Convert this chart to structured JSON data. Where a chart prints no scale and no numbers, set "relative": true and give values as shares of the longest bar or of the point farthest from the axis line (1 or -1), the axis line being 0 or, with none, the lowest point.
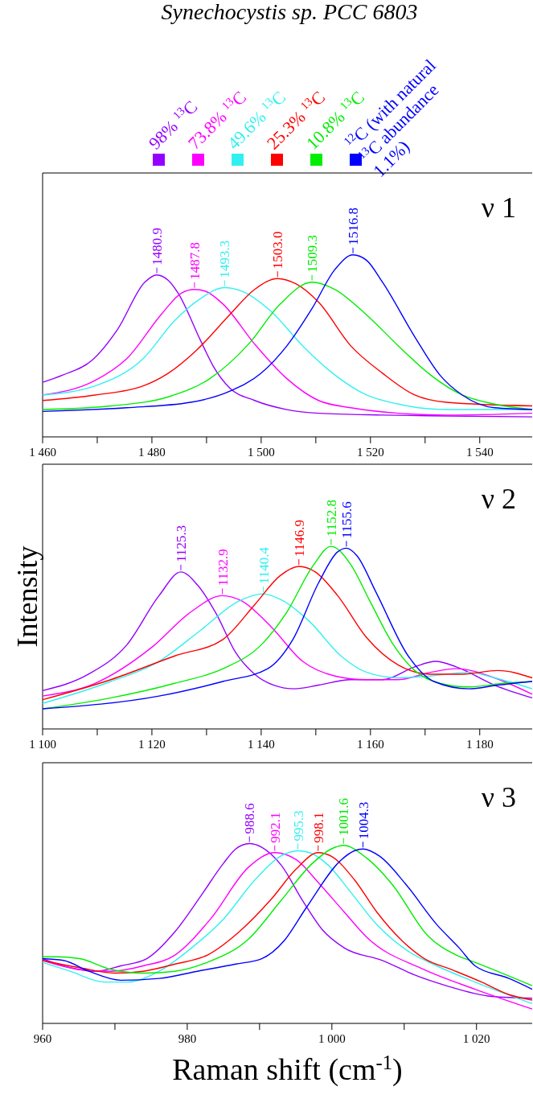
{
  "chart_data": [
    {
      "type": "line",
      "title": "Synechocystis sp. PCC 6803",
      "relative": true,
      "legend": "top",
      "xlim": [
        1460,
        1549.6
      ],
      "xticks": [
        {
          "value": 1460,
          "label": "1 460"
        },
        {
          "value": 1470,
          "label": null
        },
        {
          "value": 1480,
          "label": "1 480"
        },
        {
          "value": 1490,
          "label": null
        },
        {
          "value": 1500,
          "label": "1 500"
        },
        {
          "value": 1510,
          "label": null
        },
        {
          "value": 1520,
          "label": "1 520"
        },
        {
          "value": 1530,
          "label": null
        },
        {
          "value": 1540,
          "label": "1 540"
        }
      ],
      "series": [
        {
          "name": "98% $^{13}$C",
          "color": "#9400ff",
          "x": [
            1460,
            1463.7,
            1469.0,
            1473.7,
            1478.7,
            1480.9,
            1483.0,
            1484.8,
            1488.9,
            1491.2,
            1494.2,
            1498.8,
            1504.7,
            1510.5,
            1522.2,
            1533.9,
            1549.6
          ],
          "values": [
            0.3,
            0.34,
            0.42,
            0.59,
            0.85,
            0.89,
            0.86,
            0.79,
            0.53,
            0.39,
            0.27,
            0.2,
            0.15,
            0.13,
            0.12,
            0.115,
            0.11
          ]
        },
        {
          "name": "73.8% $^{13}$C",
          "color": "#ff00ff",
          "x": [
            1460,
            1469.6,
            1475.4,
            1481.9,
            1485.4,
            1487.8,
            1489.8,
            1493.0,
            1498.8,
            1504.7,
            1510.5,
            1516.4,
            1525.1,
            1533.9,
            1549.6
          ],
          "values": [
            0.23,
            0.31,
            0.43,
            0.68,
            0.79,
            0.81,
            0.8,
            0.73,
            0.51,
            0.32,
            0.2,
            0.16,
            0.13,
            0.12,
            0.13
          ]
        },
        {
          "name": "49.6% $^{13}$C",
          "color": "#33f0f0",
          "x": [
            1460,
            1469.6,
            1478.4,
            1484.2,
            1488.9,
            1493.3,
            1496.5,
            1501.8,
            1507.6,
            1513.5,
            1519.3,
            1525.1,
            1533.9,
            1549.6
          ],
          "values": [
            0.23,
            0.28,
            0.43,
            0.64,
            0.76,
            0.82,
            0.8,
            0.69,
            0.5,
            0.34,
            0.23,
            0.18,
            0.15,
            0.15
          ]
        },
        {
          "name": "25.3% $^{13}$C",
          "color": "#ff0000",
          "x": [
            1460,
            1469.6,
            1478.4,
            1483.0,
            1488.3,
            1494.2,
            1498.8,
            1503.0,
            1506.4,
            1510.5,
            1516.4,
            1522.2,
            1528.1,
            1533.9,
            1549.6
          ],
          "values": [
            0.2,
            0.23,
            0.28,
            0.35,
            0.48,
            0.67,
            0.81,
            0.87,
            0.84,
            0.74,
            0.5,
            0.35,
            0.23,
            0.19,
            0.17
          ]
        },
        {
          "name": "10.8% $^{13}$C",
          "color": "#00ee00",
          "x": [
            1460,
            1472.5,
            1483.0,
            1490.6,
            1497.7,
            1503.5,
            1509.3,
            1513.5,
            1519.3,
            1525.1,
            1531.0,
            1536.8,
            1542.7,
            1549.6
          ],
          "values": [
            0.15,
            0.17,
            0.22,
            0.32,
            0.51,
            0.73,
            0.85,
            0.81,
            0.67,
            0.5,
            0.34,
            0.23,
            0.18,
            0.15
          ]
        },
        {
          "name": "$^{12}$C (with natural $^{13}$C abundance 1.1%)",
          "color": "#0000ff",
          "x": [
            1460,
            1475.4,
            1487.1,
            1494.2,
            1500.0,
            1504.7,
            1509.4,
            1513.5,
            1516.8,
            1519.3,
            1522.2,
            1528.1,
            1532.7,
            1536.8,
            1542.7,
            1549.6
          ],
          "values": [
            0.14,
            0.16,
            0.19,
            0.25,
            0.35,
            0.5,
            0.71,
            0.92,
            1,
            0.97,
            0.85,
            0.55,
            0.34,
            0.23,
            0.16,
            0.15
          ]
        }
      ],
      "annotations": [
        {
          "text": "1480.9",
          "x": 1480.9,
          "y": 0.89
        },
        {
          "text": "1487.8",
          "x": 1487.8,
          "y": 0.81
        },
        {
          "text": "1493.3",
          "x": 1493.3,
          "y": 0.82
        },
        {
          "text": "1503.0",
          "x": 1503.0,
          "y": 0.87
        },
        {
          "text": "1509.3",
          "x": 1509.3,
          "y": 0.85
        },
        {
          "text": "1516.8",
          "x": 1516.8,
          "y": 1
        },
        "ν 1"
      ]
    },
    {
      "type": "line",
      "ylabel": "Intensity",
      "relative": true,
      "xlim": [
        1100,
        1189.6
      ],
      "xticks": [
        {
          "value": 1100,
          "label": "1 100"
        },
        {
          "value": 1110,
          "label": null
        },
        {
          "value": 1120,
          "label": "1 120"
        },
        {
          "value": 1130,
          "label": null
        },
        {
          "value": 1140,
          "label": "1 140"
        },
        {
          "value": 1150,
          "label": null
        },
        {
          "value": 1160,
          "label": "1 160"
        },
        {
          "value": 1170,
          "label": null
        },
        {
          "value": 1180,
          "label": "1 180"
        }
      ],
      "series": [
        {
          "color": "#9400ff",
          "x": [
            1100,
            1108.4,
            1115.4,
            1121.3,
            1125.3,
            1128.3,
            1131.8,
            1135.3,
            1138.8,
            1142.3,
            1146.1,
            1150.5,
            1156.4,
            1162.2,
            1168.1,
            1171.9,
            1175.7,
            1182.7,
            1189.6
          ],
          "values": [
            0.21,
            0.3,
            0.46,
            0.73,
            0.86,
            0.79,
            0.63,
            0.42,
            0.3,
            0.24,
            0.22,
            0.24,
            0.27,
            0.27,
            0.34,
            0.37,
            0.34,
            0.24,
            0.17
          ]
        },
        {
          "color": "#ff00ff",
          "x": [
            1100,
            1109.6,
            1120.1,
            1127.1,
            1132.9,
            1136.5,
            1141.8,
            1147.6,
            1153.5,
            1159.3,
            1165.1,
            1171.0,
            1175.7,
            1182.7,
            1189.6
          ],
          "values": [
            0.18,
            0.25,
            0.45,
            0.64,
            0.73,
            0.7,
            0.56,
            0.37,
            0.29,
            0.27,
            0.27,
            0.31,
            0.33,
            0.28,
            0.19
          ]
        },
        {
          "color": "#33f0f0",
          "x": [
            1100,
            1112.5,
            1121.3,
            1128.9,
            1135.9,
            1140.4,
            1143.5,
            1148.8,
            1154.6,
            1159.3,
            1165.1,
            1171.0,
            1178.0,
            1182.7,
            1189.6
          ],
          "values": [
            0.14,
            0.26,
            0.37,
            0.54,
            0.7,
            0.74,
            0.71,
            0.59,
            0.4,
            0.31,
            0.28,
            0.29,
            0.31,
            0.28,
            0.22
          ]
        },
        {
          "color": "#ff0000",
          "x": [
            1100,
            1112.5,
            1124.2,
            1133.0,
            1138.8,
            1143.5,
            1146.9,
            1149.9,
            1154.0,
            1159.3,
            1165.1,
            1171.0,
            1176.8,
            1183.3,
            1189.6
          ],
          "values": [
            0.16,
            0.27,
            0.4,
            0.49,
            0.68,
            0.84,
            0.89,
            0.86,
            0.73,
            0.5,
            0.35,
            0.3,
            0.3,
            0.32,
            0.28
          ]
        },
        {
          "color": "#00ee00",
          "x": [
            1100,
            1112.5,
            1124.2,
            1133.0,
            1140.0,
            1144.7,
            1149.4,
            1152.8,
            1156.4,
            1159.9,
            1164.0,
            1168.1,
            1172.7,
            1178.0,
            1184.4,
            1189.6
          ],
          "values": [
            0.11,
            0.17,
            0.25,
            0.33,
            0.46,
            0.64,
            0.89,
            1,
            0.9,
            0.7,
            0.47,
            0.32,
            0.25,
            0.23,
            0.25,
            0.26
          ]
        },
        {
          "color": "#0000ff",
          "x": [
            1100,
            1121.3,
            1133.0,
            1141.2,
            1145.8,
            1150.5,
            1154.0,
            1155.6,
            1157.5,
            1161.0,
            1166.9,
            1171.6,
            1178.0,
            1183.3,
            1189.6
          ],
          "values": [
            0.11,
            0.18,
            0.26,
            0.33,
            0.49,
            0.8,
            0.97,
            0.99,
            0.95,
            0.75,
            0.4,
            0.26,
            0.22,
            0.24,
            0.26
          ]
        }
      ],
      "annotations": [
        {
          "text": "1125.3",
          "x": 1125.3,
          "y": 0.86
        },
        {
          "text": "1132.9",
          "x": 1132.9,
          "y": 0.73
        },
        {
          "text": "1140.4",
          "x": 1140.4,
          "y": 0.74
        },
        {
          "text": "1146.9",
          "x": 1146.9,
          "y": 0.89
        },
        {
          "text": "1152.8",
          "x": 1152.8,
          "y": 1
        },
        {
          "text": "1155.6",
          "x": 1155.6,
          "y": 0.99
        },
        "ν 2"
      ]
    },
    {
      "type": "line",
      "xlabel": "Raman shift (cm$^{-1}$)",
      "relative": true,
      "xlim": [
        960,
        1027.7
      ],
      "xticks": [
        960,
        {
          "value": 970,
          "label": null
        },
        980,
        {
          "value": 990,
          "label": null
        },
        {
          "value": 1000,
          "label": "1 000"
        },
        {
          "value": 1010,
          "label": null
        },
        {
          "value": 1020,
          "label": "1 020"
        }
      ],
      "series": [
        {
          "color": "#9400ff",
          "x": [
            960,
            963.8,
            967.3,
            970.8,
            974.4,
            978.3,
            981.9,
            985.0,
            986.7,
            988.6,
            990.3,
            993.0,
            996.0,
            998.7,
            1001.7,
            1007.0,
            1011.4,
            1015.8,
            1022.1,
            1027.7
          ],
          "values": [
            0.36,
            0.31,
            0.29,
            0.32,
            0.36,
            0.51,
            0.71,
            0.89,
            0.97,
            1,
            0.98,
            0.88,
            0.68,
            0.52,
            0.42,
            0.35,
            0.27,
            0.21,
            0.15,
            0.14
          ]
        },
        {
          "color": "#ff00ff",
          "x": [
            960,
            965.1,
            969.5,
            973.9,
            978.3,
            983.2,
            988.5,
            992.1,
            995.1,
            998.2,
            1001.7,
            1004.8,
            1012.7,
            1019.8,
            1027.7
          ],
          "values": [
            0.35,
            0.3,
            0.29,
            0.32,
            0.38,
            0.58,
            0.87,
            0.95,
            0.91,
            0.78,
            0.62,
            0.48,
            0.3,
            0.19,
            0.08
          ]
        },
        {
          "color": "#33f0f0",
          "x": [
            960,
            963.8,
            968.6,
            971.7,
            976.1,
            980.6,
            985.0,
            989.4,
            992.9,
            995.3,
            996.9,
            999.5,
            1002.6,
            1006.2,
            1010.6,
            1014.5,
            1019.8,
            1027.7
          ],
          "values": [
            0.34,
            0.29,
            0.23,
            0.23,
            0.29,
            0.42,
            0.58,
            0.8,
            0.93,
            0.96,
            0.95,
            0.88,
            0.73,
            0.55,
            0.4,
            0.32,
            0.23,
            0.11
          ]
        },
        {
          "color": "#ff0000",
          "x": [
            960,
            965.1,
            970.0,
            973.9,
            978.3,
            982.8,
            987.2,
            991.6,
            995.1,
            998.1,
            999.9,
            1003.1,
            1006.2,
            1009.7,
            1012.8,
            1016.5,
            1020.7,
            1024.5,
            1027.7
          ],
          "values": [
            0.35,
            0.31,
            0.28,
            0.29,
            0.33,
            0.38,
            0.51,
            0.69,
            0.86,
            0.95,
            0.93,
            0.8,
            0.62,
            0.46,
            0.36,
            0.3,
            0.23,
            0.16,
            0.13
          ]
        },
        {
          "color": "#00ee00",
          "x": [
            960,
            962.0,
            965.1,
            969.5,
            973.9,
            978.3,
            982.8,
            988.5,
            992.9,
            997.3,
            999.9,
            1001.6,
            1004.8,
            1008.4,
            1013.2,
            1017.2,
            1019.8,
            1027.7
          ],
          "values": [
            0.37,
            0.37,
            0.36,
            0.3,
            0.28,
            0.29,
            0.34,
            0.47,
            0.68,
            0.89,
            0.97,
            0.99,
            0.92,
            0.77,
            0.49,
            0.38,
            0.34,
            0.21
          ]
        },
        {
          "color": "#0000ff",
          "x": [
            960,
            962.9,
            966.4,
            970.8,
            976.1,
            981.4,
            986.7,
            990.3,
            993.4,
            996.4,
            1001.3,
            1003.1,
            1004.3,
            1006.6,
            1010.1,
            1014.5,
            1017.6,
            1019.8,
            1024.5,
            1027.7
          ],
          "values": [
            0.36,
            0.35,
            0.29,
            0.24,
            0.25,
            0.29,
            0.33,
            0.36,
            0.46,
            0.64,
            0.91,
            0.96,
            0.97,
            0.93,
            0.78,
            0.55,
            0.42,
            0.32,
            0.25,
            0.19
          ]
        }
      ],
      "annotations": [
        {
          "text": "988.6",
          "x": 988.6,
          "y": 1
        },
        {
          "text": "992.1",
          "x": 992.1,
          "y": 0.95
        },
        {
          "text": "995.3",
          "x": 995.3,
          "y": 0.96
        },
        {
          "text": "998.1",
          "x": 998.1,
          "y": 0.95
        },
        {
          "text": "1001.6",
          "x": 1001.6,
          "y": 0.99
        },
        {
          "text": "1004.3",
          "x": 1004.3,
          "y": 0.97
        },
        "ν 3"
      ]
    }
  ]
}
